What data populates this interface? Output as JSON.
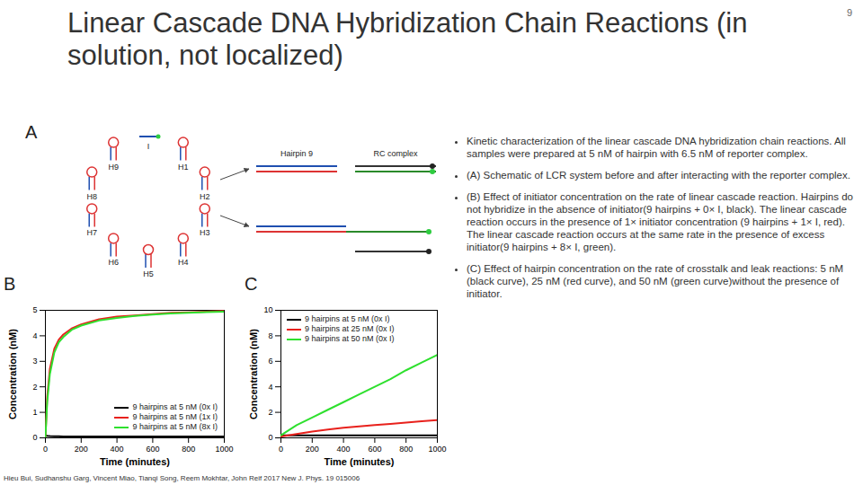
{
  "slide": {
    "title": "Linear Cascade DNA Hybridization Chain Reactions (in solution, not localized)",
    "page_number": "9",
    "bullets": [
      "Kinetic characterization of the linear cascade DNA hybridization chain reactions. All samples were prepared at 5 nM of hairpin with 6.5 nM of reporter complex.",
      "(A) Schematic of LCR system before and after interacting with the reporter complex.",
      "(B) Effect of initiator concentration on the rate of linear cascade reaction. Hairpins do not hybridize in the absence of initiator(9 hairpins + 0× I, black). The linear cascade reaction occurs in the presence of 1× initiator concentration (9 hairpins + 1× I, red). The linear cascade reaction occurs at the same rate in the presence of excess initiator(9 hairpins + 8× I, green).",
      "(C) Effect of hairpin concentration on the rate of crosstalk and leak reactions: 5 nM (black curve), 25 nM (red curve), and 50 nM (green curve)without the presence of initiator."
    ],
    "citation": "Hieu Bui, Sudhanshu Garg, Vincent Miao, Tianqi Song, Reem Mokhtar, John Reif 2017 New J. Phys. 19 015006"
  },
  "schematic": {
    "panel_label": "A",
    "initiator": "I",
    "hairpins": [
      "H1",
      "H2",
      "H3",
      "H4",
      "H5",
      "H6",
      "H7",
      "H8",
      "H9"
    ],
    "complex_labels": [
      "Hairpin 9",
      "RC complex"
    ]
  },
  "chart_data": [
    {
      "type": "line",
      "panel_label": "B",
      "xlabel": "Time (minutes)",
      "ylabel": "Concentration (nM)",
      "xlim": [
        0,
        1000
      ],
      "ylim": [
        0,
        5
      ],
      "xticks": [
        0,
        200,
        400,
        600,
        800,
        1000
      ],
      "yticks": [
        0,
        1,
        2,
        3,
        4,
        5
      ],
      "legend": "lower right",
      "x": [
        0,
        10,
        25,
        50,
        75,
        100,
        150,
        200,
        300,
        400,
        500,
        600,
        700,
        800,
        900,
        1000
      ],
      "series": [
        {
          "name": "9 hairpins at 5 nM (0x I)",
          "color": "#000000",
          "values": [
            0.1,
            0.08,
            0.07,
            0.06,
            0.06,
            0.05,
            0.05,
            0.05,
            0.05,
            0.05,
            0.05,
            0.05,
            0.05,
            0.05,
            0.05,
            0.05
          ]
        },
        {
          "name": "9 hairpins at 5 nM (1x I)",
          "color": "#e8211c",
          "values": [
            0,
            1.6,
            2.7,
            3.5,
            3.85,
            4.05,
            4.3,
            4.45,
            4.65,
            4.75,
            4.8,
            4.85,
            4.9,
            4.92,
            4.95,
            4.97
          ]
        },
        {
          "name": "9 hairpins at 5 nM (8x I)",
          "color": "#2ee02e",
          "values": [
            0,
            1.4,
            2.5,
            3.35,
            3.75,
            3.95,
            4.25,
            4.4,
            4.6,
            4.7,
            4.78,
            4.83,
            4.88,
            4.9,
            4.93,
            4.95
          ]
        }
      ]
    },
    {
      "type": "line",
      "panel_label": "C",
      "xlabel": "Time (minutes)",
      "ylabel": "Concentration (nM)",
      "xlim": [
        0,
        1000
      ],
      "ylim": [
        0,
        10
      ],
      "xticks": [
        0,
        200,
        400,
        600,
        800,
        1000
      ],
      "yticks": [
        0,
        2,
        4,
        6,
        8,
        10
      ],
      "legend": "upper left",
      "x": [
        0,
        100,
        200,
        300,
        400,
        500,
        600,
        700,
        800,
        900,
        1000
      ],
      "series": [
        {
          "name": "9 hairpins at 5 nM (0x I)",
          "color": "#000000",
          "values": [
            0.2,
            0.2,
            0.2,
            0.2,
            0.2,
            0.2,
            0.2,
            0.2,
            0.2,
            0.2,
            0.2
          ]
        },
        {
          "name": "9 hairpins at 25 nM (0x I)",
          "color": "#e8211c",
          "values": [
            0.1,
            0.3,
            0.5,
            0.65,
            0.8,
            0.9,
            1.0,
            1.1,
            1.2,
            1.3,
            1.4
          ]
        },
        {
          "name": "9 hairpins at 50 nM (0x I)",
          "color": "#2ee02e",
          "values": [
            0.2,
            1.0,
            1.6,
            2.2,
            2.8,
            3.4,
            4.0,
            4.6,
            5.3,
            5.9,
            6.5
          ]
        }
      ]
    }
  ]
}
